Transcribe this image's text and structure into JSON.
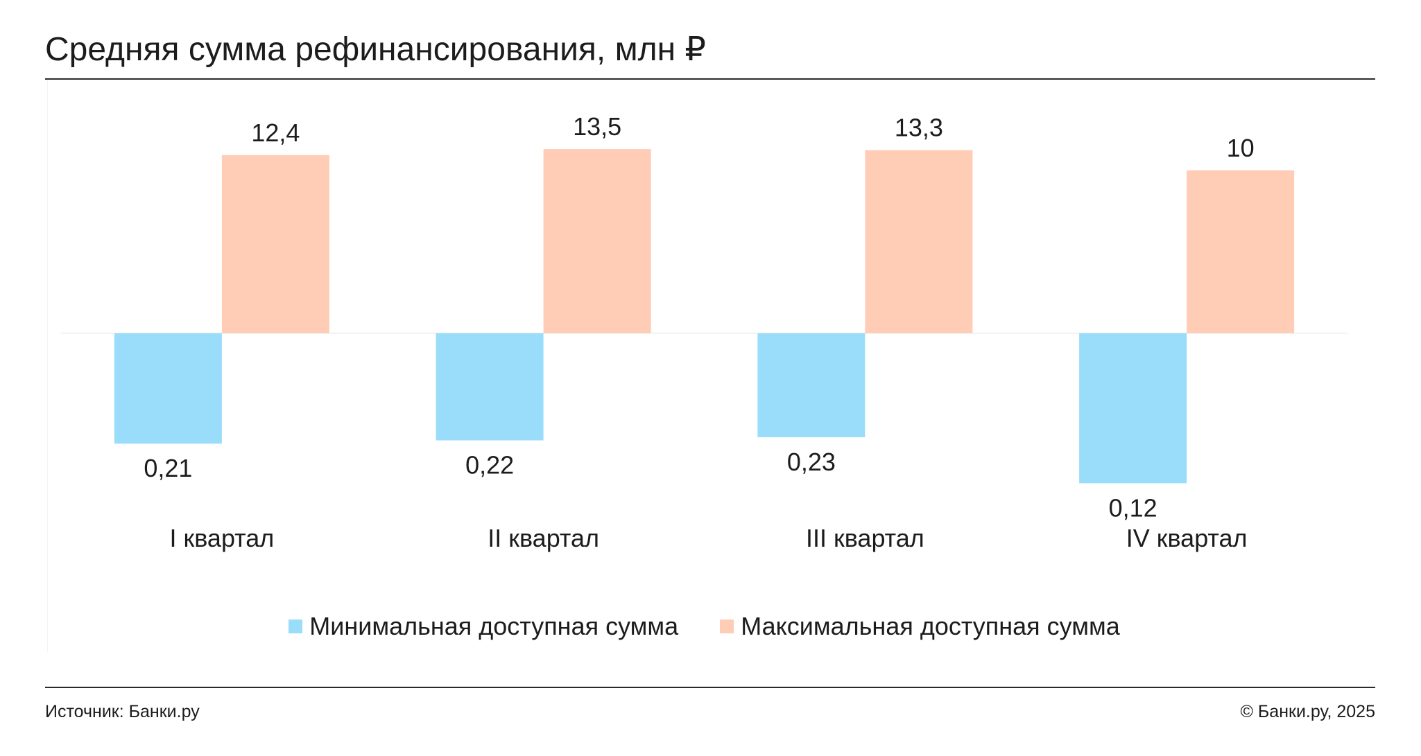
{
  "chart_data": {
    "type": "bar",
    "title": "Средняя сумма рефинансирования, млн ₽",
    "categories": [
      "I квартал",
      "II квартал",
      "III квартал",
      "IV квартал"
    ],
    "series": [
      {
        "name": "Минимальная доступная сумма",
        "values": [
          0.21,
          0.22,
          0.23,
          0.12
        ],
        "data_labels": [
          "0,21",
          "0,22",
          "0,23",
          "0,12"
        ],
        "color": "#99DDFB"
      },
      {
        "name": "Максимальная доступная сумма",
        "values": [
          12.4,
          13.5,
          13.3,
          10
        ],
        "data_labels": [
          "12,4",
          "13,5",
          "13,3",
          "10"
        ],
        "color": "#FFCDB5"
      }
    ],
    "xlabel": "",
    "ylabel": "",
    "yscale": "log",
    "ylim": [
      0.1,
      20
    ],
    "grid": false,
    "legend_position": "bottom"
  },
  "footer": {
    "source": "Источник: Банки.ру",
    "copyright": "© Банки.ру, 2025"
  }
}
